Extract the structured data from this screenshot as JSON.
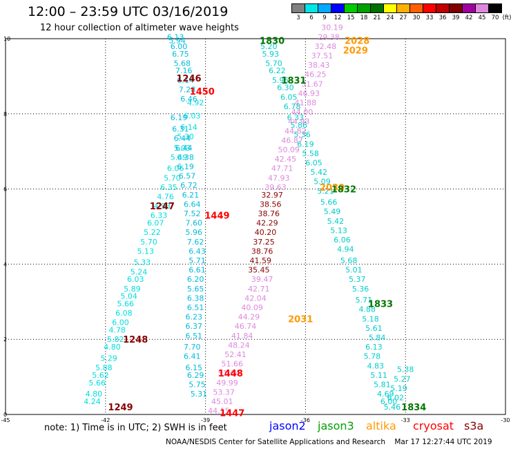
{
  "header": {
    "title": "12:00 – 23:59 UTC 03/16/2019",
    "subtitle": "12 hour collection of altimeter wave heights"
  },
  "scale": {
    "unit": "(ft)",
    "bins": [
      {
        "label": "3",
        "color": "#808080"
      },
      {
        "label": "6",
        "color": "#00e5e5"
      },
      {
        "label": "9",
        "color": "#00aaff"
      },
      {
        "label": "12",
        "color": "#0000ff"
      },
      {
        "label": "15",
        "color": "#00cc00"
      },
      {
        "label": "18",
        "color": "#00a000"
      },
      {
        "label": "21",
        "color": "#007000"
      },
      {
        "label": "24",
        "color": "#ffff00"
      },
      {
        "label": "27",
        "color": "#ffb000"
      },
      {
        "label": "30",
        "color": "#ff6000"
      },
      {
        "label": "33",
        "color": "#ff0000"
      },
      {
        "label": "36",
        "color": "#c00000"
      },
      {
        "label": "39",
        "color": "#800000"
      },
      {
        "label": "42",
        "color": "#a000a0"
      },
      {
        "label": "45",
        "color": "#dd88dd"
      },
      {
        "label": "70",
        "color": "#000000"
      }
    ]
  },
  "legend": [
    {
      "label": "jason2",
      "color": "#0000ff"
    },
    {
      "label": "jason3",
      "color": "#00a000"
    },
    {
      "label": "altika",
      "color": "#ff9900"
    },
    {
      "label": "cryosat",
      "color": "#ff0000"
    },
    {
      "label": "s3a",
      "color": "#880000"
    }
  ],
  "footnote": "note:  1) Time is in UTC;  2) SWH is in feet",
  "credit": "NOAA/NESDIS Center for Satellite Applications and Research    Mar 17 12:27:44 UTC 2019",
  "chart_data": {
    "type": "scatter",
    "xlim": [
      -45,
      -30
    ],
    "ylim": [
      0,
      10
    ],
    "xticks": [
      "-45",
      "-42",
      "-39",
      "-36",
      "-33",
      "-30"
    ],
    "yticks": [
      "0",
      "2",
      "4",
      "6",
      "8",
      "10"
    ],
    "grid": true,
    "series": [
      {
        "name": "s3a",
        "color": "#00dddd",
        "x": [
          -42.4,
          -42.35,
          -42.25,
          -42.15,
          -42.05,
          -41.9,
          -41.8,
          -41.7,
          -41.65,
          -41.55,
          -41.45,
          -41.4,
          -41.3,
          -41.2,
          -41.1,
          -41.0,
          -40.9,
          -40.8,
          -40.7,
          -40.6,
          -40.5,
          -40.4,
          -40.3,
          -40.2,
          -40.1,
          -40.0,
          -39.9,
          -39.8,
          -39.7,
          -39.6,
          -39.5,
          -39.4,
          -39.3
        ],
        "y": [
          0.35,
          0.55,
          0.85,
          1.05,
          1.25,
          1.5,
          1.8,
          2.0,
          2.25,
          2.45,
          2.7,
          2.95,
          3.15,
          3.35,
          3.6,
          3.8,
          4.05,
          4.35,
          4.6,
          4.85,
          5.1,
          5.3,
          5.55,
          5.8,
          6.05,
          6.3,
          6.55,
          6.85,
          7.1,
          7.4,
          7.65,
          7.95,
          8.3
        ],
        "values": [
          "4.24",
          "4.80",
          "5.66",
          "5.62",
          "5.88",
          "5.29",
          "4.80",
          "5.82",
          "4.78",
          "6.00",
          "6.08",
          "5.66",
          "5.04",
          "5.89",
          "6.03",
          "5.24",
          "5.33",
          "5.13",
          "5.70",
          "5.22",
          "6.07",
          "6.33",
          "4.93",
          "4.76",
          "6.35",
          "5.70",
          "6.06",
          "5.49",
          "5.03",
          "5.30",
          "6.14",
          "6.03",
          "4.92"
        ]
      },
      {
        "name": "s3a",
        "color": "#00bbdd",
        "x": [
          -39.2,
          -39.25,
          -39.3,
          -39.35,
          -39.4,
          -39.4,
          -39.35,
          -39.35,
          -39.35,
          -39.3,
          -39.3,
          -39.3,
          -39.3,
          -39.25,
          -39.25,
          -39.25,
          -39.3,
          -39.35,
          -39.35,
          -39.4,
          -39.4,
          -39.45,
          -39.5,
          -39.55,
          -39.6,
          -39.6,
          -39.65,
          -39.7,
          -39.75,
          -39.8
        ],
        "y": [
          0.55,
          0.8,
          1.05,
          1.25,
          1.55,
          1.8,
          2.1,
          2.35,
          2.6,
          2.85,
          3.1,
          3.35,
          3.6,
          3.85,
          4.1,
          4.35,
          4.6,
          4.85,
          5.1,
          5.35,
          5.6,
          5.85,
          6.1,
          6.35,
          6.6,
          6.85,
          7.1,
          7.35,
          7.6,
          7.9
        ],
        "values": [
          "5.31",
          "5.75",
          "6.29",
          "6.15",
          "6.41",
          "7.70",
          "6.51",
          "6.37",
          "6.23",
          "6.51",
          "6.38",
          "5.65",
          "6.20",
          "6.61",
          "5.71",
          "6.43",
          "7.62",
          "5.96",
          "7.60",
          "7.52",
          "6.64",
          "6.21",
          "6.72",
          "6.57",
          "6.19",
          "6.38",
          "6.44",
          "6.44",
          "6.31",
          "6.19"
        ]
      },
      {
        "name": "s3a",
        "color": "#00bbdd",
        "x": [
          -39.5,
          -39.55,
          -39.6,
          -39.65,
          -39.7,
          -39.75,
          -39.8,
          -39.85,
          -39.9
        ],
        "y": [
          8.4,
          8.65,
          8.9,
          9.15,
          9.35,
          9.6,
          9.8,
          9.95,
          10.05
        ],
        "values": [
          "6.46",
          "7.28",
          "6.14",
          "7.16",
          "5.68",
          "6.75",
          "6.00",
          "5.94",
          "6.13"
        ]
      },
      {
        "name": "jason3",
        "color": "#00cccc",
        "x": [
          -37.1,
          -37.05,
          -36.95,
          -36.85,
          -36.75,
          -36.6,
          -36.5,
          -36.4,
          -36.3,
          -36.2,
          -36.1,
          -36.0,
          -35.85,
          -35.75,
          -35.6,
          -35.5,
          -35.4,
          -35.3,
          -35.2,
          -35.1,
          -35.0,
          -34.9,
          -34.8,
          -34.7,
          -34.55,
          -34.45,
          -34.35,
          -34.25,
          -34.15,
          -34.05,
          -33.95,
          -33.85
        ],
        "y": [
          9.8,
          9.6,
          9.35,
          9.15,
          8.9,
          8.7,
          8.45,
          8.2,
          7.9,
          7.7,
          7.45,
          7.2,
          6.95,
          6.7,
          6.45,
          6.2,
          5.95,
          5.65,
          5.4,
          5.15,
          4.9,
          4.65,
          4.4,
          4.1,
          3.85,
          3.6,
          3.35,
          3.05,
          2.8,
          2.55,
          2.3,
          2.05
        ],
        "values": [
          "5.20",
          "5.93",
          "5.70",
          "6.22",
          "5.95",
          "6.30",
          "6.05",
          "6.78",
          "6.33",
          "5.86",
          "5.36",
          "6.19",
          "5.58",
          "6.05",
          "5.42",
          "5.09",
          "5.21",
          "5.66",
          "5.49",
          "5.42",
          "5.13",
          "6.06",
          "4.94",
          "5.68",
          "5.01",
          "5.37",
          "5.36",
          "5.71",
          "4.88",
          "5.18",
          "5.61",
          "5.84"
        ]
      },
      {
        "name": "jason3",
        "color": "#00cccc",
        "x": [
          -33.95,
          -34.0,
          -33.9,
          -33.8,
          -33.7,
          -33.6,
          -33.5,
          -33.4,
          -33.3,
          -33.2,
          -33.1,
          -33.0
        ],
        "y": [
          1.8,
          1.55,
          1.3,
          1.05,
          0.8,
          0.55,
          0.35,
          0.2,
          0.45,
          0.7,
          0.95,
          1.2
        ],
        "values": [
          "6.13",
          "5.78",
          "4.83",
          "5.11",
          "5.81",
          "4.69",
          "6.00",
          "5.46",
          "6.02",
          "5.19",
          "5.27",
          "5.38"
        ]
      },
      {
        "name": "cryosat",
        "color": "#dd88dd",
        "x": [
          -38.6,
          -38.5,
          -38.45,
          -38.35,
          -38.3,
          -38.2,
          -38.1,
          -38.0,
          -37.9,
          -37.8,
          -37.7,
          -37.6,
          -37.5,
          -37.4,
          -37.3
        ],
        "y": [
          0.1,
          0.35,
          0.6,
          0.85,
          1.1,
          1.35,
          1.6,
          1.85,
          2.1,
          2.35,
          2.6,
          2.85,
          3.1,
          3.35,
          3.6
        ],
        "values": [
          "44.15",
          "45.01",
          "53.37",
          "49.99",
          "51.64",
          "51.66",
          "52.41",
          "48.24",
          "41.84",
          "46.74",
          "44.29",
          "40.09",
          "42.04",
          "42.71",
          "39.47"
        ]
      },
      {
        "name": "cryosat",
        "color": "#880000",
        "x": [
          -37.4,
          -37.35,
          -37.3,
          -37.25,
          -37.2,
          -37.15,
          -37.1,
          -37.05,
          -37.0
        ],
        "y": [
          3.85,
          4.1,
          4.35,
          4.6,
          4.85,
          5.1,
          5.35,
          5.6,
          5.85
        ],
        "values": [
          "35.45",
          "41.59",
          "38.76",
          "37.25",
          "40.20",
          "42.29",
          "38.76",
          "38.56",
          "32.97"
        ]
      },
      {
        "name": "cryosat",
        "color": "#dd88dd",
        "x": [
          -36.9,
          -36.8,
          -36.7,
          -36.6,
          -36.5,
          -36.4,
          -36.3,
          -36.2,
          -36.1,
          -36.0,
          -35.9,
          -35.8,
          -35.7,
          -35.6,
          -35.5,
          -35.4,
          -35.3,
          -35.2
        ],
        "y": [
          6.05,
          6.3,
          6.55,
          6.8,
          7.05,
          7.3,
          7.55,
          7.8,
          8.05,
          8.3,
          8.55,
          8.8,
          9.05,
          9.3,
          9.55,
          9.8,
          10.05,
          10.3
        ],
        "values": [
          "39.63",
          "47.93",
          "47.71",
          "42.45",
          "50.09",
          "46.87",
          "44.82",
          "44.93",
          "44.00",
          "41.88",
          "46.93",
          "51.67",
          "46.25",
          "38.43",
          "37.51",
          "32.48",
          "29.38",
          "30.19"
        ]
      }
    ],
    "annotations": [
      {
        "text": "1830",
        "x": -37.0,
        "y": 9.95,
        "color": "#007700"
      },
      {
        "text": "2028",
        "x": -34.45,
        "y": 9.95,
        "color": "#ff9900"
      },
      {
        "text": "2029",
        "x": -34.5,
        "y": 9.7,
        "color": "#ff9900"
      },
      {
        "text": "1246",
        "x": -39.5,
        "y": 8.95,
        "color": "#880000"
      },
      {
        "text": "1831",
        "x": -36.35,
        "y": 8.9,
        "color": "#007700"
      },
      {
        "text": "1450",
        "x": -39.1,
        "y": 8.6,
        "color": "#ff0000"
      },
      {
        "text": "2030",
        "x": -35.2,
        "y": 6.05,
        "color": "#ff9900"
      },
      {
        "text": "1832",
        "x": -34.85,
        "y": 6.0,
        "color": "#007700"
      },
      {
        "text": "1247",
        "x": -40.3,
        "y": 5.55,
        "color": "#880000"
      },
      {
        "text": "1449",
        "x": -38.65,
        "y": 5.3,
        "color": "#ff0000"
      },
      {
        "text": "1833",
        "x": -33.75,
        "y": 2.95,
        "color": "#007700"
      },
      {
        "text": "2031",
        "x": -36.15,
        "y": 2.55,
        "color": "#ff9900"
      },
      {
        "text": "1248",
        "x": -41.1,
        "y": 2.0,
        "color": "#880000"
      },
      {
        "text": "1448",
        "x": -38.25,
        "y": 1.1,
        "color": "#ff0000"
      },
      {
        "text": "1834",
        "x": -32.75,
        "y": 0.2,
        "color": "#007700"
      },
      {
        "text": "1249",
        "x": -41.55,
        "y": 0.2,
        "color": "#880000"
      },
      {
        "text": "1447",
        "x": -38.2,
        "y": 0.05,
        "color": "#ff0000"
      }
    ]
  }
}
